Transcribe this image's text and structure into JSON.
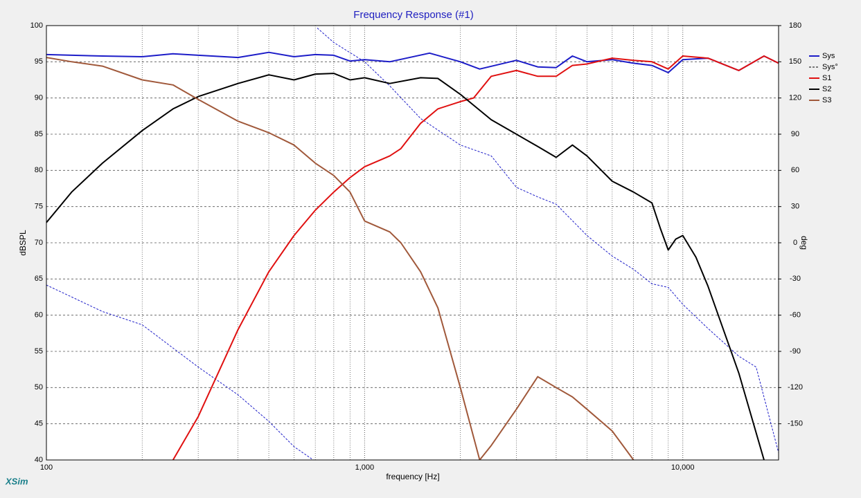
{
  "chart_data": {
    "type": "line",
    "title": "Frequency Response (#1)",
    "xlabel": "frequency [Hz]",
    "ylabel": "dBSPL",
    "y2label": "deg",
    "brand": "XSim",
    "xscale": "log",
    "grid": true,
    "legend": "upper right",
    "xlim": [
      100,
      20000
    ],
    "xticks": [
      100,
      {
        "value": 1000,
        "label": "1,000"
      },
      {
        "value": 10000,
        "label": "10,000"
      }
    ],
    "ylim": [
      40,
      100
    ],
    "yticks": [
      40,
      45,
      50,
      55,
      60,
      65,
      70,
      75,
      80,
      85,
      90,
      95,
      100
    ],
    "y2lim": [
      -180,
      180
    ],
    "y2ticks": [
      -150,
      -120,
      -90,
      -60,
      -30,
      0,
      30,
      60,
      90,
      120,
      150,
      180
    ],
    "series": [
      {
        "name": "Sys",
        "color": "#1c1cc8",
        "width": 2,
        "x": [
          100,
          150,
          200,
          250,
          300,
          400,
          500,
          600,
          700,
          800,
          900,
          1000,
          1200,
          1600,
          2000,
          2300,
          3000,
          3500,
          4000,
          4500,
          5000,
          6000,
          7000,
          8000,
          9000,
          10000,
          12000,
          15000,
          18000,
          20000
        ],
        "values": [
          96,
          95.8,
          95.7,
          96.1,
          95.9,
          95.6,
          96.3,
          95.7,
          96,
          95.9,
          95.1,
          95.3,
          95,
          96.2,
          95,
          94,
          95.2,
          94.3,
          94.2,
          95.8,
          95,
          95.3,
          94.8,
          94.5,
          93.5,
          95.3,
          95.5,
          93.8,
          95.8,
          94.8
        ]
      },
      {
        "name": "Sys°",
        "color": "#1c1cc8",
        "width": 1,
        "dashed": true,
        "axis": "y2",
        "x": [
          100,
          150,
          200,
          300,
          400,
          500,
          600,
          690,
          700,
          710,
          800,
          1000,
          1200,
          1500,
          2000,
          2500,
          3000,
          3500,
          4000,
          5000,
          6000,
          7000,
          8000,
          9000,
          10000,
          12000,
          15000,
          17000,
          20000
        ],
        "values": [
          -35,
          -57,
          -68,
          -103,
          -126,
          -148,
          -169,
          -180,
          null,
          178,
          166,
          150,
          130,
          103,
          81,
          72,
          46,
          38,
          32,
          6,
          -11,
          -22,
          -34,
          -37,
          -51,
          -71,
          -94,
          -103,
          -174
        ]
      },
      {
        "name": "S1",
        "color": "#e01010",
        "width": 2,
        "x": [
          250,
          300,
          400,
          500,
          600,
          700,
          800,
          900,
          1000,
          1200,
          1300,
          1500,
          1700,
          2000,
          2200,
          2500,
          3000,
          3500,
          4000,
          4500,
          5000,
          6000,
          7000,
          8000,
          9000,
          10000,
          12000,
          15000,
          18000,
          20000
        ],
        "values": [
          40,
          46,
          58,
          66,
          71,
          74.5,
          77,
          79,
          80.5,
          82,
          83,
          86.5,
          88.5,
          89.5,
          90,
          93,
          93.8,
          93,
          93,
          94.5,
          94.7,
          95.5,
          95.2,
          95,
          94,
          95.8,
          95.5,
          93.8,
          95.8,
          94.8
        ]
      },
      {
        "name": "S2",
        "color": "#000000",
        "width": 2,
        "x": [
          100,
          120,
          150,
          200,
          250,
          300,
          400,
          500,
          600,
          700,
          800,
          900,
          1000,
          1200,
          1500,
          1700,
          2000,
          2500,
          3000,
          3500,
          4000,
          4500,
          5000,
          6000,
          7000,
          8000,
          8500,
          9000,
          9500,
          10000,
          11000,
          12000,
          15000,
          18000
        ],
        "values": [
          72.8,
          77,
          81,
          85.5,
          88.5,
          90.2,
          92,
          93.2,
          92.5,
          93.3,
          93.4,
          92.5,
          92.8,
          92,
          92.8,
          92.7,
          90.5,
          87,
          85,
          83.3,
          81.8,
          83.5,
          82,
          78.5,
          77,
          75.5,
          72,
          69,
          70.5,
          71,
          68,
          64,
          52,
          40
        ]
      },
      {
        "name": "S3",
        "color": "#a0583a",
        "width": 2,
        "x": [
          100,
          120,
          150,
          200,
          250,
          300,
          400,
          500,
          600,
          700,
          800,
          900,
          1000,
          1200,
          1300,
          1500,
          1700,
          2000,
          2300,
          2500,
          3000,
          3500,
          4000,
          4500,
          5000,
          6000,
          7000
        ],
        "values": [
          95.6,
          95,
          94.4,
          92.5,
          91.8,
          89.8,
          86.8,
          85.2,
          83.5,
          81,
          79.3,
          77,
          73,
          71.5,
          70,
          66,
          61,
          50,
          40,
          42,
          47,
          51.5,
          50,
          48.7,
          47,
          44,
          40
        ]
      }
    ]
  }
}
